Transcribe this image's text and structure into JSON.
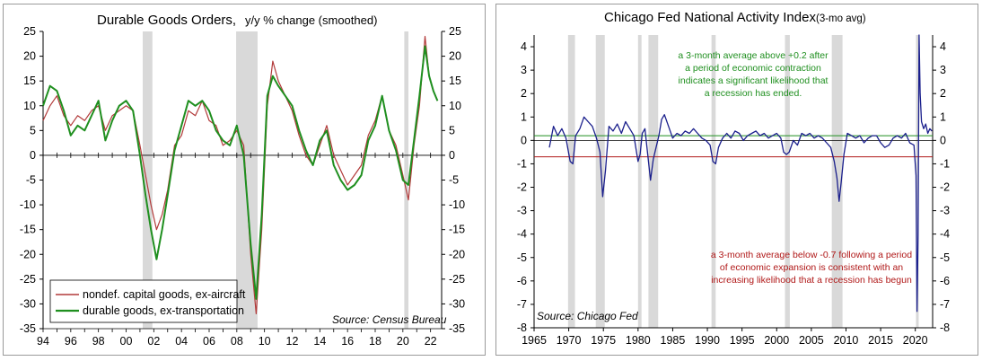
{
  "chart_data": [
    {
      "type": "line",
      "title": "Durable Goods Orders,",
      "subtitle": "y/y % change (smoothed)",
      "source": "Source: Census Bureau",
      "x_tick_labels": [
        "94",
        "96",
        "98",
        "00",
        "02",
        "04",
        "06",
        "08",
        "10",
        "12",
        "14",
        "16",
        "18",
        "20",
        "22"
      ],
      "x_tick_values": [
        1994,
        1996,
        1998,
        2000,
        2002,
        2004,
        2006,
        2008,
        2010,
        2012,
        2014,
        2016,
        2018,
        2020,
        2022
      ],
      "xlim": [
        1994,
        2022.8
      ],
      "ylim": [
        -35,
        25
      ],
      "y_ticks": [
        25,
        20,
        15,
        10,
        5,
        0,
        -5,
        -10,
        -15,
        -20,
        -25,
        -30,
        -35
      ],
      "recessions": [
        [
          2001.2,
          2001.9
        ],
        [
          2007.95,
          2009.5
        ],
        [
          2020.1,
          2020.4
        ]
      ],
      "legend_position": "bottom-left",
      "series": [
        {
          "name": "nondef. capital goods, ex-aircraft",
          "color": "#b23a3a",
          "x": [
            1994.0,
            1994.5,
            1995.0,
            1995.5,
            1996.0,
            1996.5,
            1997.0,
            1997.5,
            1998.0,
            1998.5,
            1999.0,
            1999.5,
            2000.0,
            2000.5,
            2001.0,
            2001.4,
            2001.8,
            2002.2,
            2002.6,
            2003.0,
            2003.5,
            2004.0,
            2004.5,
            2005.0,
            2005.5,
            2006.0,
            2006.5,
            2007.0,
            2007.5,
            2008.0,
            2008.5,
            2009.0,
            2009.4,
            2009.8,
            2010.2,
            2010.6,
            2011.0,
            2011.5,
            2012.0,
            2012.5,
            2013.0,
            2013.5,
            2014.0,
            2014.5,
            2015.0,
            2015.5,
            2016.0,
            2016.5,
            2017.0,
            2017.5,
            2018.0,
            2018.5,
            2019.0,
            2019.5,
            2020.0,
            2020.4,
            2020.8,
            2021.2,
            2021.6,
            2021.9,
            2022.2,
            2022.5
          ],
          "y": [
            7,
            10,
            12,
            8,
            6,
            8,
            7,
            9,
            10,
            5,
            8,
            9,
            10,
            9,
            2,
            -4,
            -10,
            -15,
            -12,
            -7,
            2,
            4,
            9,
            8,
            11,
            7,
            6,
            2,
            3,
            5,
            2,
            -20,
            -32,
            -15,
            10,
            19,
            15,
            12,
            9,
            4,
            0,
            -2,
            2,
            6,
            0,
            -3,
            -6,
            -4,
            -2,
            4,
            7,
            12,
            5,
            2,
            -4,
            -9,
            2,
            10,
            24,
            16,
            13,
            11
          ]
        },
        {
          "name": "durable goods, ex-transportation",
          "color": "#1f8f1f",
          "x": [
            1994.0,
            1994.5,
            1995.0,
            1995.5,
            1996.0,
            1996.5,
            1997.0,
            1997.5,
            1998.0,
            1998.5,
            1999.0,
            1999.5,
            2000.0,
            2000.5,
            2001.0,
            2001.4,
            2001.8,
            2002.2,
            2002.6,
            2003.0,
            2003.5,
            2004.0,
            2004.5,
            2005.0,
            2005.5,
            2006.0,
            2006.5,
            2007.0,
            2007.5,
            2008.0,
            2008.5,
            2009.0,
            2009.4,
            2009.8,
            2010.2,
            2010.6,
            2011.0,
            2011.5,
            2012.0,
            2012.5,
            2013.0,
            2013.5,
            2014.0,
            2014.5,
            2015.0,
            2015.5,
            2016.0,
            2016.5,
            2017.0,
            2017.5,
            2018.0,
            2018.5,
            2019.0,
            2019.5,
            2020.0,
            2020.4,
            2020.8,
            2021.2,
            2021.6,
            2021.9,
            2022.2,
            2022.5
          ],
          "y": [
            10,
            14,
            13,
            9,
            4,
            6,
            5,
            8,
            11,
            3,
            7,
            10,
            11,
            9,
            0,
            -8,
            -15,
            -21,
            -15,
            -8,
            1,
            6,
            11,
            10,
            11,
            9,
            5,
            3,
            2,
            6,
            0,
            -18,
            -29,
            -12,
            12,
            16,
            14,
            12,
            10,
            5,
            1,
            -2,
            3,
            5,
            -2,
            -5,
            -7,
            -6,
            -4,
            3,
            6,
            12,
            5,
            1,
            -5,
            -6,
            3,
            12,
            22,
            16,
            13,
            11
          ]
        }
      ]
    },
    {
      "type": "line",
      "title": "Chicago Fed National Activity Index",
      "subtitle": "(3-mo avg)",
      "source": "Source: Chicago Fed",
      "x_tick_labels": [
        "1965",
        "1970",
        "1975",
        "1980",
        "1985",
        "1990",
        "1995",
        "2000",
        "2005",
        "2010",
        "2015",
        "2020"
      ],
      "x_tick_values": [
        1965,
        1970,
        1975,
        1980,
        1985,
        1990,
        1995,
        2000,
        2005,
        2010,
        2015,
        2020
      ],
      "xlim": [
        1965,
        2022.5
      ],
      "ylim": [
        -8,
        4.5
      ],
      "y_ticks": [
        4,
        3,
        2,
        1,
        0,
        -1,
        -2,
        -3,
        -4,
        -5,
        -6,
        -7,
        -8
      ],
      "y_tick_labels_left": [
        "4",
        "3",
        "2",
        "1",
        "0",
        "-1",
        "-2",
        "-3",
        "-4",
        "-5",
        "-6",
        "-7",
        "-8"
      ],
      "y_tick_labels_right": [
        "4",
        "3",
        "2",
        "1",
        "0",
        "-1",
        "-2",
        "-3",
        "-4",
        "-5",
        "-6",
        "-7",
        "-8"
      ],
      "recessions": [
        [
          1969.9,
          1970.9
        ],
        [
          1973.9,
          1975.2
        ],
        [
          1980.0,
          1980.5
        ],
        [
          1981.5,
          1982.9
        ],
        [
          1990.6,
          1991.2
        ],
        [
          2001.2,
          2001.9
        ],
        [
          2007.95,
          2009.5
        ],
        [
          2020.1,
          2020.4
        ]
      ],
      "threshold_lines": [
        {
          "value": 0.2,
          "color": "#1f8f1f"
        },
        {
          "value": -0.7,
          "color": "#b01818"
        }
      ],
      "annotations": [
        {
          "color": "#1f8f1f",
          "lines": [
            "a 3-month average above +0.2 after",
            "a period of economic contraction",
            "indicates a significant likelihood that",
            "a recession has ended."
          ]
        },
        {
          "color": "#b01818",
          "lines": [
            "a 3-month average below -0.7 following a period",
            "of economic expansion is consistent with an",
            "increasing likelihood that a recession has begun"
          ]
        }
      ],
      "series": [
        {
          "name": "",
          "color": "#1a1f8c",
          "x": [
            1967.2,
            1967.8,
            1968.4,
            1969.0,
            1969.6,
            1970.2,
            1970.6,
            1971.0,
            1971.6,
            1972.2,
            1972.8,
            1973.4,
            1974.0,
            1974.5,
            1974.9,
            1975.3,
            1975.8,
            1976.4,
            1977.0,
            1977.6,
            1978.2,
            1978.8,
            1979.4,
            1980.0,
            1980.3,
            1980.6,
            1981.0,
            1981.4,
            1981.8,
            1982.2,
            1982.6,
            1983.0,
            1983.4,
            1983.8,
            1984.4,
            1985.0,
            1985.6,
            1986.2,
            1986.8,
            1987.4,
            1988.0,
            1988.6,
            1989.2,
            1989.8,
            1990.4,
            1990.8,
            1991.2,
            1991.6,
            1992.2,
            1992.8,
            1993.4,
            1994.0,
            1994.6,
            1995.2,
            1995.8,
            1996.4,
            1997.0,
            1997.6,
            1998.2,
            1998.8,
            1999.4,
            2000.0,
            2000.6,
            2001.0,
            2001.4,
            2001.8,
            2002.4,
            2003.0,
            2003.6,
            2004.2,
            2004.8,
            2005.4,
            2006.0,
            2006.6,
            2007.2,
            2007.8,
            2008.3,
            2008.7,
            2009.0,
            2009.3,
            2009.7,
            2010.2,
            2010.8,
            2011.4,
            2012.0,
            2012.6,
            2013.2,
            2013.8,
            2014.4,
            2015.0,
            2015.6,
            2016.2,
            2016.8,
            2017.4,
            2018.0,
            2018.6,
            2019.2,
            2019.8,
            2020.1,
            2020.25,
            2020.4,
            2020.55,
            2020.7,
            2020.9,
            2021.2,
            2021.5,
            2021.8,
            2022.1,
            2022.4
          ],
          "y": [
            -0.3,
            0.6,
            0.2,
            0.5,
            0.1,
            -0.9,
            -1.0,
            0.2,
            0.5,
            1.0,
            0.8,
            0.6,
            0.1,
            -0.5,
            -2.4,
            -1.3,
            0.6,
            0.4,
            0.7,
            0.3,
            0.8,
            0.5,
            0.2,
            -0.9,
            -0.6,
            0.3,
            0.5,
            -0.6,
            -1.7,
            -0.8,
            -0.3,
            0.2,
            0.9,
            1.1,
            0.6,
            0.1,
            0.3,
            0.2,
            0.4,
            0.3,
            0.5,
            0.3,
            0.1,
            0.0,
            -0.2,
            -0.9,
            -1.0,
            -0.3,
            0.1,
            0.3,
            0.1,
            0.4,
            0.3,
            0.0,
            0.2,
            0.3,
            0.4,
            0.2,
            0.3,
            0.1,
            0.2,
            0.3,
            0.1,
            -0.5,
            -0.6,
            -0.5,
            0.0,
            -0.2,
            0.3,
            0.2,
            0.3,
            0.1,
            0.2,
            0.1,
            -0.1,
            -0.3,
            -0.9,
            -1.6,
            -2.6,
            -1.8,
            -0.6,
            0.3,
            0.2,
            0.1,
            0.2,
            -0.1,
            0.1,
            0.2,
            0.2,
            -0.1,
            -0.3,
            -0.2,
            0.1,
            0.2,
            0.1,
            0.3,
            -0.1,
            -0.2,
            -1.5,
            -7.3,
            -4.0,
            4.5,
            2.0,
            0.8,
            0.5,
            0.7,
            0.3,
            0.5,
            0.4
          ]
        }
      ]
    }
  ]
}
